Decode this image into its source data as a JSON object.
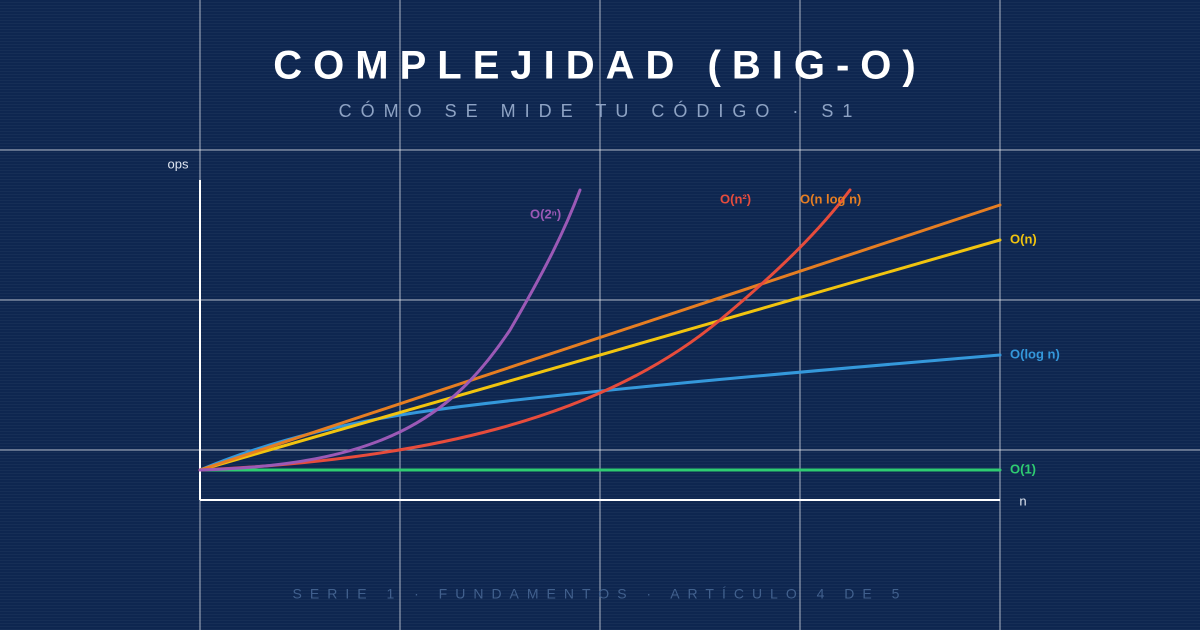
{
  "header": {
    "title": "COMPLEJIDAD (BIG-O)",
    "subtitle": "CÓMO SE MIDE TU CÓDIGO · S1"
  },
  "axes": {
    "y_label": "ops",
    "x_label": "n"
  },
  "curves": [
    {
      "label": "O(1)"
    },
    {
      "label": "O(log n)"
    },
    {
      "label": "O(n)"
    },
    {
      "label": "O(n log n)"
    },
    {
      "label": "O(n²)"
    },
    {
      "label": "O(2ⁿ)"
    }
  ],
  "footer": "SERIE 1 · FUNDAMENTOS · ARTÍCULO 4 DE 5"
}
